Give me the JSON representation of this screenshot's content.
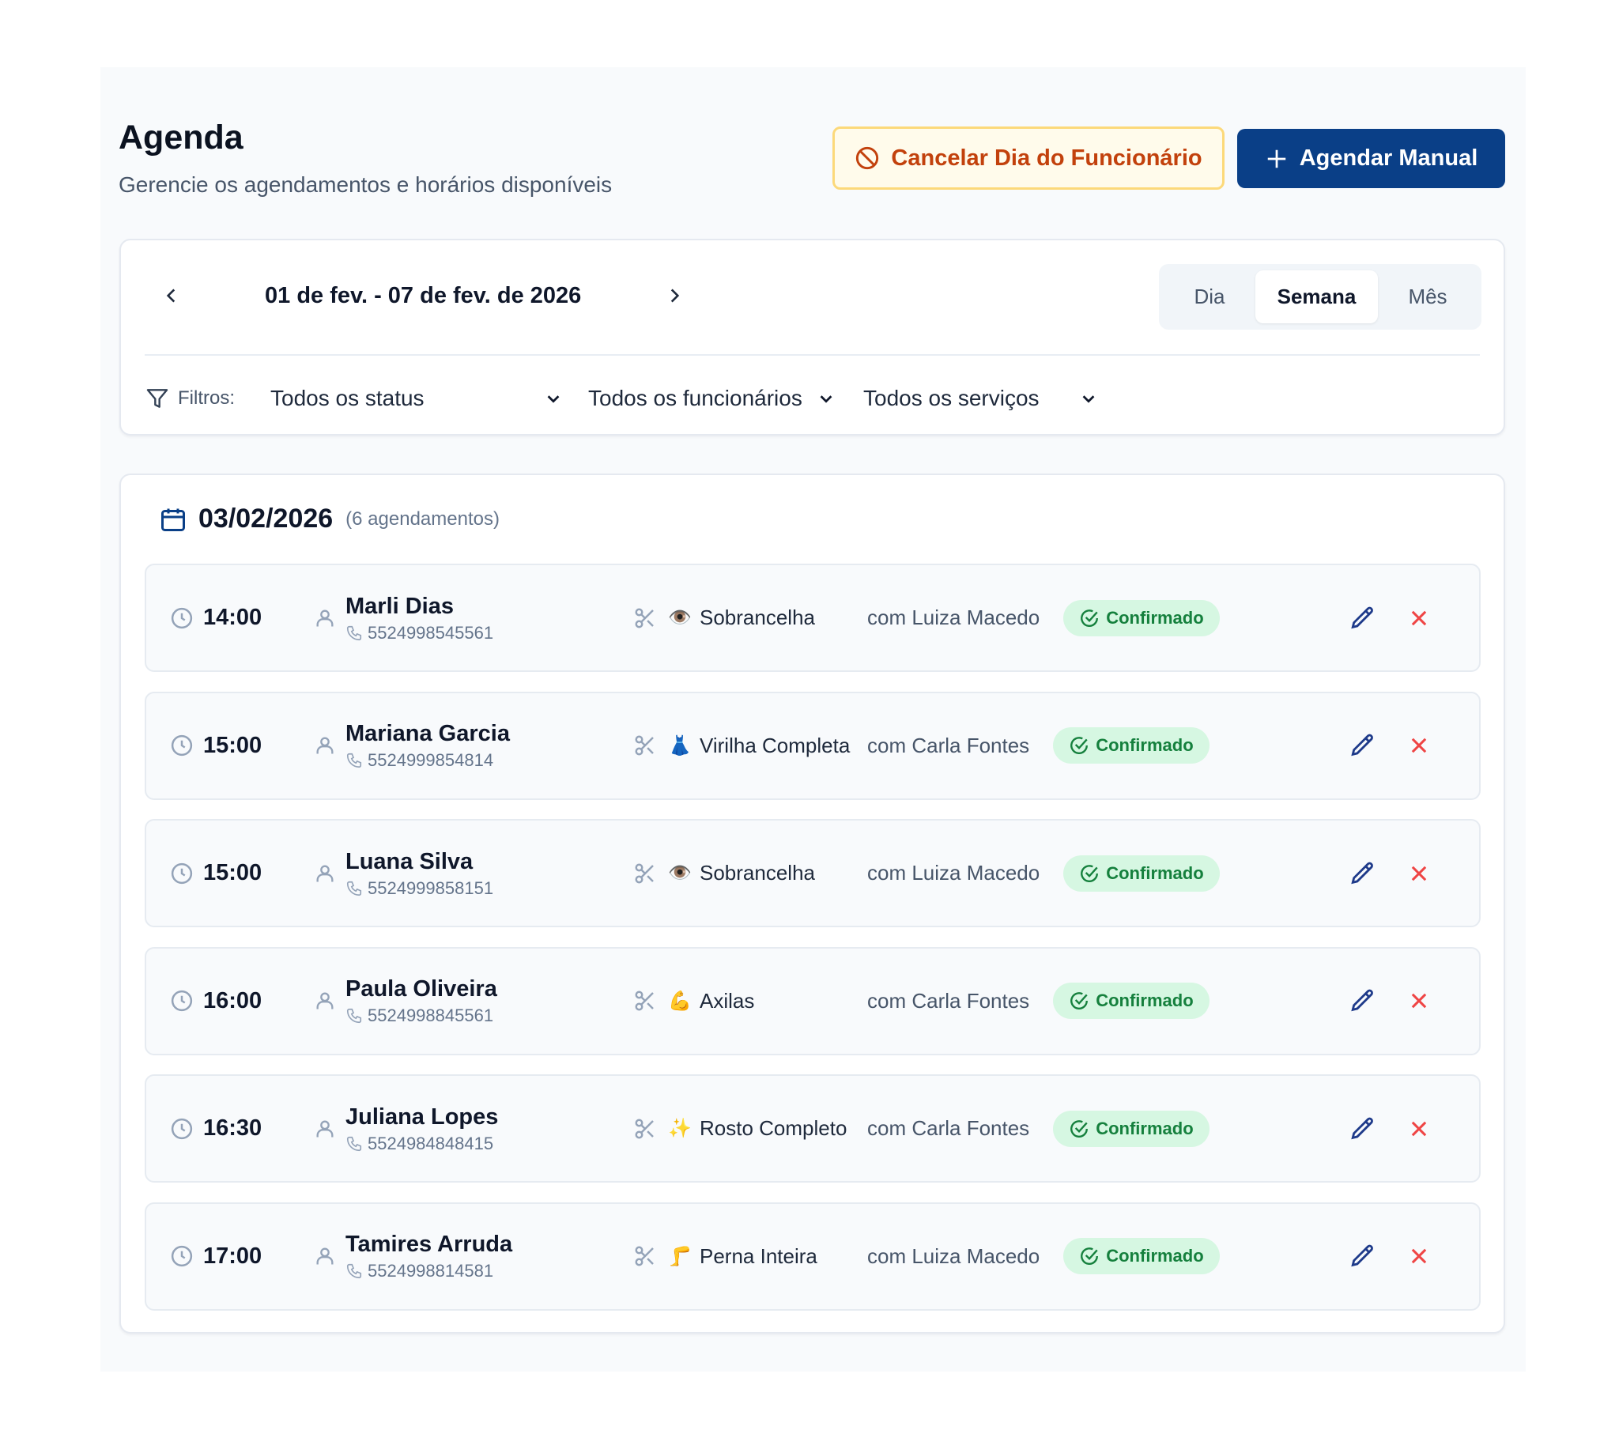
{
  "header": {
    "title": "Agenda",
    "subtitle": "Gerencie os agendamentos e horários disponíveis"
  },
  "actions": {
    "cancel_day_label": "Cancelar Dia do Funcionário",
    "manual_booking_label": "Agendar Manual"
  },
  "navigator": {
    "date_range": "01 de fev. - 07 de fev. de 2026",
    "views": [
      "Dia",
      "Semana",
      "Mês"
    ],
    "active_view": "Semana"
  },
  "filters": {
    "label": "Filtros:",
    "status": "Todos os status",
    "employees": "Todos os funcionários",
    "services": "Todos os serviços"
  },
  "day": {
    "date": "03/02/2026",
    "count_label": "(6 agendamentos)"
  },
  "appointments": [
    {
      "time": "14:00",
      "client": "Marli Dias",
      "phone": "5524998545561",
      "service_emoji": "👁️",
      "service": "Sobrancelha",
      "staff": "com Luiza Macedo",
      "status": "Confirmado"
    },
    {
      "time": "15:00",
      "client": "Mariana Garcia",
      "phone": "5524999854814",
      "service_emoji": "👗",
      "service": "Virilha Completa",
      "staff": "com Carla Fontes",
      "status": "Confirmado"
    },
    {
      "time": "15:00",
      "client": "Luana Silva",
      "phone": "5524999858151",
      "service_emoji": "👁️",
      "service": "Sobrancelha",
      "staff": "com Luiza Macedo",
      "status": "Confirmado"
    },
    {
      "time": "16:00",
      "client": "Paula Oliveira",
      "phone": "5524998845561",
      "service_emoji": "💪",
      "service": "Axilas",
      "staff": "com Carla Fontes",
      "status": "Confirmado"
    },
    {
      "time": "16:30",
      "client": "Juliana Lopes",
      "phone": "5524984848415",
      "service_emoji": "✨",
      "service": "Rosto Completo",
      "staff": "com Carla Fontes",
      "status": "Confirmado"
    },
    {
      "time": "17:00",
      "client": "Tamires Arruda",
      "phone": "5524998814581",
      "service_emoji": "🦵",
      "service": "Perna Inteira",
      "staff": "com Luiza Macedo",
      "status": "Confirmado"
    }
  ],
  "colors": {
    "primary": "#0a3f87",
    "warning_text": "#c2410c",
    "warning_bg": "#fffbeb",
    "success_bg": "#d6f7e2",
    "success_text": "#15803d",
    "danger": "#ef4444"
  }
}
